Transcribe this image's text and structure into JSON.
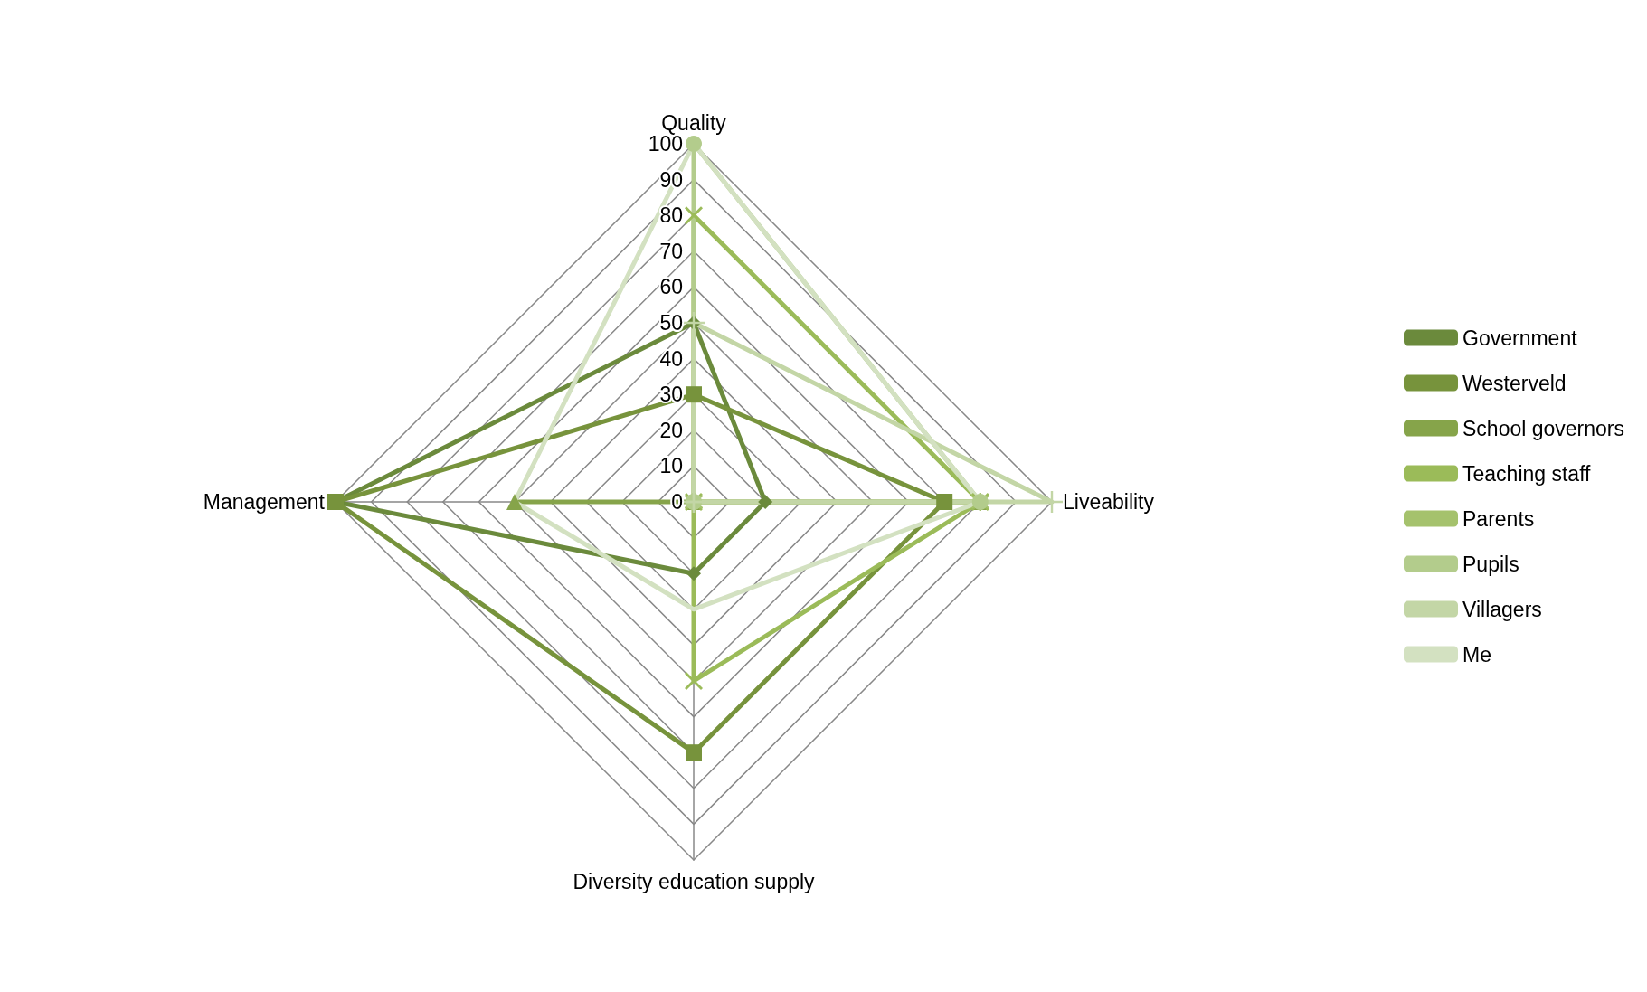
{
  "chart_data": {
    "type": "radar",
    "categories": [
      "Quality",
      "Liveability",
      "Diversity education supply",
      "Management"
    ],
    "ylim": [
      0,
      100
    ],
    "yticks": [
      0,
      10,
      20,
      30,
      40,
      50,
      60,
      70,
      80,
      90,
      100
    ],
    "legend": "right",
    "grid": true,
    "series": [
      {
        "name": "Government",
        "color": "#6b8a3c",
        "marker": "diamond",
        "values": [
          50,
          20,
          20,
          100
        ]
      },
      {
        "name": "Westerveld",
        "color": "#77933c",
        "marker": "square",
        "values": [
          30,
          70,
          70,
          100
        ]
      },
      {
        "name": "School governors",
        "color": "#86a44a",
        "marker": "triangle",
        "values": [
          0,
          80,
          0,
          50
        ]
      },
      {
        "name": "Teaching staff",
        "color": "#9bbb59",
        "marker": "cross",
        "values": [
          80,
          80,
          50,
          0
        ]
      },
      {
        "name": "Parents",
        "color": "#a5c26d",
        "marker": "star",
        "values": [
          0,
          80,
          0,
          0
        ]
      },
      {
        "name": "Pupils",
        "color": "#b3cc8c",
        "marker": "circle",
        "values": [
          100,
          80,
          0,
          0
        ]
      },
      {
        "name": "Villagers",
        "color": "#c3d6a6",
        "marker": "plus",
        "values": [
          50,
          100,
          0,
          0
        ]
      },
      {
        "name": "Me",
        "color": "#d3e1c1",
        "marker": "none",
        "values": [
          100,
          80,
          30,
          50
        ]
      }
    ]
  }
}
